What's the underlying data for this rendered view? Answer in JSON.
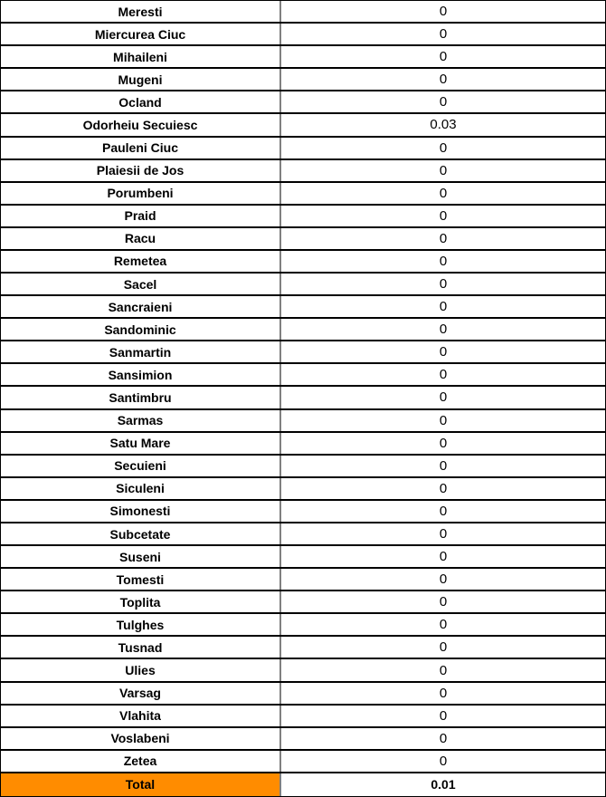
{
  "colors": {
    "total_highlight": "#FF8C00",
    "row_border": "#000000",
    "column_divider": "#808080",
    "text": "#000000",
    "background": "#FFFFFF"
  },
  "chart_data": {
    "type": "table",
    "categories": [
      "Meresti",
      "Miercurea Ciuc",
      "Mihaileni",
      "Mugeni",
      "Ocland",
      "Odorheiu Secuiesc",
      "Pauleni Ciuc",
      "Plaiesii de Jos",
      "Porumbeni",
      "Praid",
      "Racu",
      "Remetea",
      "Sacel",
      "Sancraieni",
      "Sandominic",
      "Sanmartin",
      "Sansimion",
      "Santimbru",
      "Sarmas",
      "Satu Mare",
      "Secuieni",
      "Siculeni",
      "Simonesti",
      "Subcetate",
      "Suseni",
      "Tomesti",
      "Toplita",
      "Tulghes",
      "Tusnad",
      "Ulies",
      "Varsag",
      "Vlahita",
      "Voslabeni",
      "Zetea"
    ],
    "values": [
      "0",
      "0",
      "0",
      "0",
      "0",
      "0.03",
      "0",
      "0",
      "0",
      "0",
      "0",
      "0",
      "0",
      "0",
      "0",
      "0",
      "0",
      "0",
      "0",
      "0",
      "0",
      "0",
      "0",
      "0",
      "0",
      "0",
      "0",
      "0",
      "0",
      "0",
      "0",
      "0",
      "0",
      "0"
    ],
    "total_label": "Total",
    "total_value": "0.01",
    "layout": {
      "rows_total": 35,
      "grid": "on",
      "value_column_alignment": "center",
      "label_column_alignment": "center"
    }
  }
}
